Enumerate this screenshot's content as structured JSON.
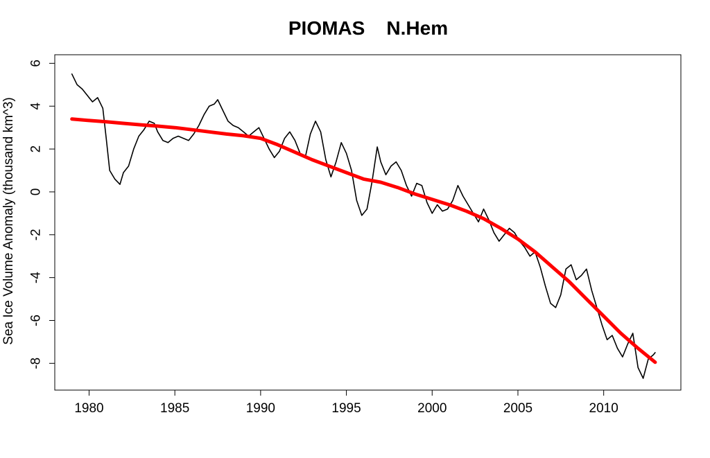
{
  "chart_data": {
    "type": "line",
    "title": "PIOMAS    N.Hem",
    "xlabel": "",
    "ylabel": "Sea Ice Volume Anomaly (thousand km^3)",
    "xlim": [
      1978,
      2014.5
    ],
    "ylim": [
      -9.25,
      6.4
    ],
    "x_ticks": [
      1980,
      1985,
      1990,
      1995,
      2000,
      2005,
      2010
    ],
    "y_ticks": [
      -8,
      -6,
      -4,
      -2,
      0,
      2,
      4,
      6
    ],
    "x_tick_labels": [
      "1980",
      "1985",
      "1990",
      "1995",
      "2000",
      "2005",
      "2010"
    ],
    "y_tick_labels": [
      "-8",
      "-6",
      "-4",
      "-2",
      "0",
      "2",
      "4",
      "6"
    ],
    "grid": false,
    "series": [
      {
        "color": "#000000",
        "x": [
          1979.0,
          1979.3,
          1979.6,
          1979.9,
          1980.2,
          1980.5,
          1980.8,
          1981.0,
          1981.2,
          1981.5,
          1981.8,
          1982.0,
          1982.3,
          1982.6,
          1982.9,
          1983.2,
          1983.5,
          1983.8,
          1984.0,
          1984.3,
          1984.6,
          1984.9,
          1985.2,
          1985.5,
          1985.8,
          1986.1,
          1986.4,
          1986.7,
          1987.0,
          1987.3,
          1987.5,
          1987.8,
          1988.1,
          1988.4,
          1988.7,
          1989.0,
          1989.3,
          1989.6,
          1989.9,
          1990.2,
          1990.5,
          1990.8,
          1991.1,
          1991.4,
          1991.7,
          1992.0,
          1992.3,
          1992.6,
          1992.9,
          1993.2,
          1993.5,
          1993.8,
          1994.1,
          1994.4,
          1994.7,
          1995.0,
          1995.3,
          1995.6,
          1995.9,
          1996.2,
          1996.5,
          1996.8,
          1997.0,
          1997.3,
          1997.6,
          1997.9,
          1998.2,
          1998.5,
          1998.8,
          1999.1,
          1999.4,
          1999.7,
          2000.0,
          2000.3,
          2000.6,
          2000.9,
          2001.2,
          2001.5,
          2001.8,
          2002.1,
          2002.4,
          2002.7,
          2003.0,
          2003.3,
          2003.6,
          2003.9,
          2004.2,
          2004.5,
          2004.8,
          2005.1,
          2005.4,
          2005.7,
          2006.0,
          2006.3,
          2006.6,
          2006.9,
          2007.2,
          2007.5,
          2007.8,
          2008.1,
          2008.4,
          2008.7,
          2009.0,
          2009.3,
          2009.6,
          2009.9,
          2010.2,
          2010.5,
          2010.8,
          2011.1,
          2011.4,
          2011.7,
          2012.0,
          2012.3,
          2012.6,
          2012.9,
          2013.0
        ],
        "y": [
          5.5,
          5.0,
          4.8,
          4.5,
          4.2,
          4.4,
          3.9,
          2.5,
          1.0,
          0.6,
          0.35,
          0.9,
          1.2,
          2.0,
          2.6,
          2.9,
          3.3,
          3.2,
          2.8,
          2.4,
          2.3,
          2.5,
          2.6,
          2.5,
          2.4,
          2.7,
          3.1,
          3.6,
          4.0,
          4.1,
          4.3,
          3.8,
          3.3,
          3.1,
          3.0,
          2.8,
          2.6,
          2.8,
          3.0,
          2.5,
          2.0,
          1.6,
          1.9,
          2.5,
          2.8,
          2.4,
          1.8,
          1.6,
          2.7,
          3.3,
          2.8,
          1.5,
          0.7,
          1.4,
          2.3,
          1.8,
          1.0,
          -0.4,
          -1.1,
          -0.8,
          0.5,
          2.1,
          1.4,
          0.8,
          1.2,
          1.4,
          1.0,
          0.3,
          -0.2,
          0.4,
          0.3,
          -0.5,
          -1.0,
          -0.6,
          -0.9,
          -0.8,
          -0.4,
          0.3,
          -0.2,
          -0.6,
          -1.0,
          -1.4,
          -0.8,
          -1.3,
          -1.9,
          -2.3,
          -2.0,
          -1.7,
          -1.9,
          -2.3,
          -2.6,
          -3.0,
          -2.8,
          -3.5,
          -4.4,
          -5.2,
          -5.4,
          -4.8,
          -3.6,
          -3.4,
          -4.1,
          -3.9,
          -3.6,
          -4.6,
          -5.4,
          -6.2,
          -6.9,
          -6.7,
          -7.3,
          -7.7,
          -7.1,
          -6.6,
          -8.2,
          -8.7,
          -7.8,
          -7.6,
          -7.5
        ]
      },
      {
        "color": "#ff0000",
        "x": [
          1979.0,
          1980.0,
          1981.0,
          1982.0,
          1983.0,
          1984.0,
          1985.0,
          1986.0,
          1987.0,
          1988.0,
          1989.0,
          1990.0,
          1991.0,
          1992.0,
          1993.0,
          1994.0,
          1995.0,
          1996.0,
          1997.0,
          1998.0,
          1999.0,
          2000.0,
          2001.0,
          2002.0,
          2003.0,
          2004.0,
          2005.0,
          2006.0,
          2007.0,
          2008.0,
          2009.0,
          2010.0,
          2011.0,
          2012.0,
          2013.0
        ],
        "y": [
          3.4,
          3.33,
          3.27,
          3.2,
          3.13,
          3.07,
          3.0,
          2.9,
          2.8,
          2.7,
          2.62,
          2.5,
          2.2,
          1.85,
          1.5,
          1.2,
          0.9,
          0.6,
          0.45,
          0.2,
          -0.1,
          -0.35,
          -0.6,
          -0.9,
          -1.25,
          -1.7,
          -2.2,
          -2.8,
          -3.5,
          -4.2,
          -5.0,
          -5.8,
          -6.6,
          -7.3,
          -7.95
        ]
      }
    ]
  }
}
